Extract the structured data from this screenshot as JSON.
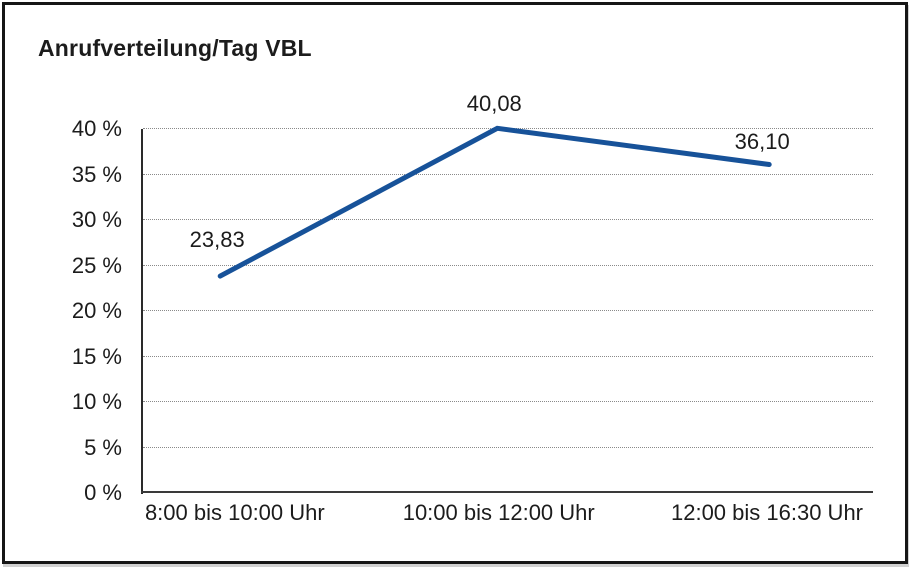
{
  "window": {
    "background": "#ffffff",
    "frame_border_color": "#161616"
  },
  "chart_data": {
    "type": "line",
    "title": "Anrufverteilung/Tag VBL",
    "categories": [
      "8:00 bis 10:00 Uhr",
      "10:00 bis 12:00 Uhr",
      "12:00 bis 16:30 Uhr"
    ],
    "values": [
      23.83,
      40.08,
      36.1
    ],
    "data_labels": [
      "23,83",
      "40,08",
      "36,10"
    ],
    "y_ticks": [
      0,
      5,
      10,
      15,
      20,
      25,
      30,
      35,
      40
    ],
    "y_tick_labels": [
      "0 %",
      "5 %",
      "10 %",
      "15 %",
      "20 %",
      "25 %",
      "30 %",
      "35 %",
      "40 %"
    ],
    "ylim": [
      0,
      40
    ],
    "xlabel": "",
    "ylabel": "",
    "legend": "none",
    "grid": "horizontal-dotted",
    "line_color": "#175299",
    "text_color": "#1c1c1c",
    "grid_color": "#8a8a8a",
    "axis_color": "#2a2a2a"
  }
}
